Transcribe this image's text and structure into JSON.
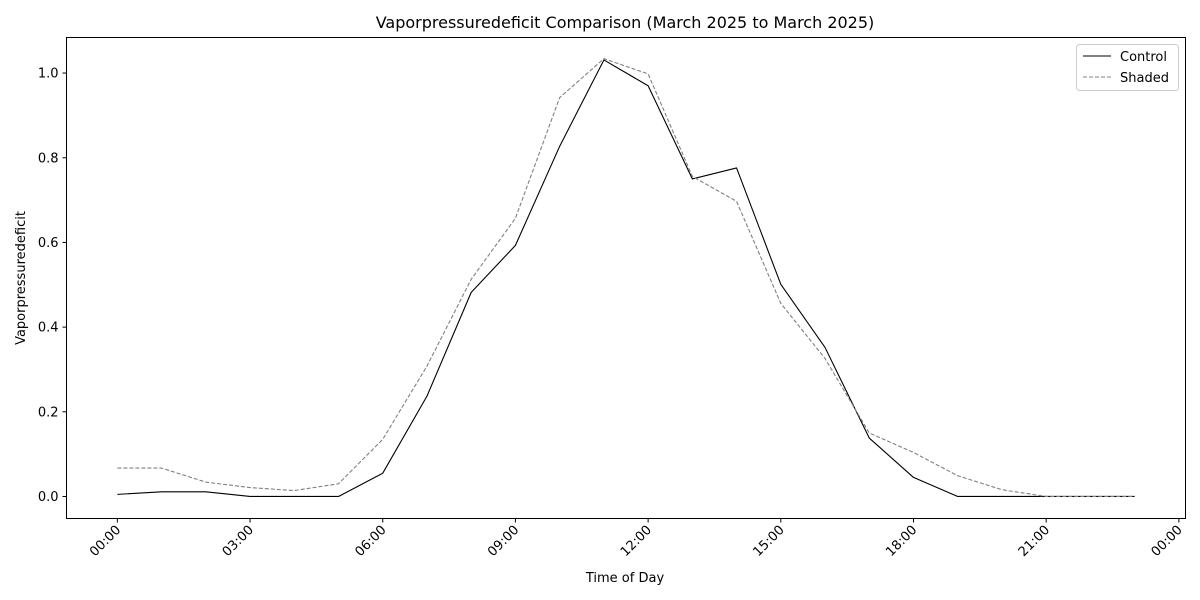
{
  "chart_data": {
    "type": "line",
    "title": "Vaporpressuredeficit Comparison (March 2025 to March 2025)",
    "xlabel": "Time of Day",
    "ylabel": "Vaporpressuredeficit",
    "x_ticks": [
      "00:00",
      "03:00",
      "06:00",
      "09:00",
      "12:00",
      "15:00",
      "18:00",
      "21:00",
      "00:00"
    ],
    "x_tick_hours": [
      0,
      3,
      6,
      9,
      12,
      15,
      18,
      21,
      24
    ],
    "xlim": [
      -1.15,
      24.15
    ],
    "y_ticks": [
      "0.0",
      "0.2",
      "0.4",
      "0.6",
      "0.8",
      "1.0"
    ],
    "y_tick_values": [
      0,
      0.2,
      0.4,
      0.6,
      0.8,
      1.0
    ],
    "ylim": [
      -0.052,
      1.084
    ],
    "x_hours": [
      0,
      1,
      2,
      3,
      4,
      5,
      6,
      7,
      8,
      9,
      10,
      11,
      12,
      13,
      14,
      15,
      16,
      17,
      18,
      19,
      20,
      21,
      22,
      23
    ],
    "legend_position": "top-right",
    "grid": false,
    "series": [
      {
        "name": "Control",
        "color": "#000000",
        "dash": "solid",
        "values": [
          0.005,
          0.011,
          0.011,
          0.0,
          0.0,
          0.0,
          0.055,
          0.237,
          0.482,
          0.593,
          0.827,
          1.031,
          0.97,
          0.75,
          0.776,
          0.501,
          0.352,
          0.138,
          0.045,
          0.0,
          0.0,
          0.0,
          0.0,
          0.0
        ]
      },
      {
        "name": "Shaded",
        "color": "#808080",
        "dash": "dashed",
        "values": [
          0.067,
          0.067,
          0.034,
          0.021,
          0.014,
          0.03,
          0.135,
          0.308,
          0.513,
          0.657,
          0.942,
          1.034,
          0.998,
          0.756,
          0.697,
          0.456,
          0.326,
          0.15,
          0.104,
          0.049,
          0.016,
          0.0,
          0.0,
          0.0
        ]
      }
    ]
  }
}
